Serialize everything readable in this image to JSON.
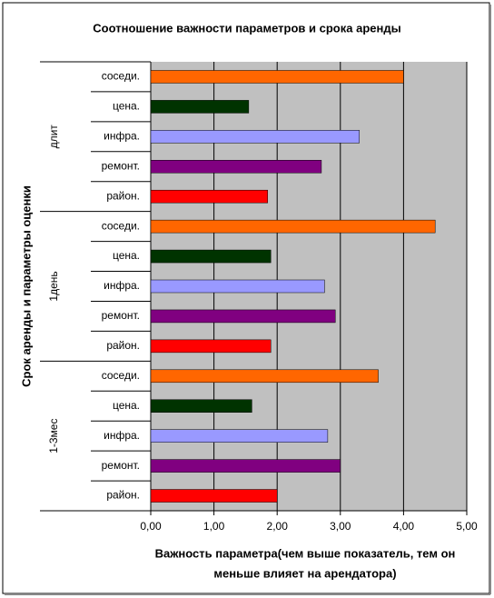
{
  "chart_data": {
    "type": "bar",
    "orientation": "horizontal",
    "title": "Соотношение важности параметров и срока аренды",
    "ylabel": "Срок аренды и параметры оценки",
    "xlabel": [
      "Важность параметра(чем выше показатель, тем он",
      "меньше влияет на арендатора)"
    ],
    "categories": [
      "соседи.",
      "цена.",
      "инфра.",
      "ремонт.",
      "район."
    ],
    "colors": [
      "#ff6600",
      "#003300",
      "#9999ff",
      "#800080",
      "#ff0000"
    ],
    "series": [
      {
        "name": "длит",
        "values": [
          4.0,
          1.55,
          3.3,
          2.7,
          1.85
        ]
      },
      {
        "name": "1день",
        "values": [
          4.5,
          1.9,
          2.75,
          2.92,
          1.9
        ]
      },
      {
        "name": "1-3мес",
        "values": [
          3.6,
          1.6,
          2.8,
          3.0,
          2.0
        ]
      }
    ],
    "xlim": [
      0,
      5
    ],
    "xticks": [
      {
        "value": 0,
        "label": "0,00"
      },
      {
        "value": 1,
        "label": "1,00"
      },
      {
        "value": 2,
        "label": "2,00"
      },
      {
        "value": 3,
        "label": "3,00"
      },
      {
        "value": 4,
        "label": "4,00"
      },
      {
        "value": 5,
        "label": "5,00"
      }
    ],
    "grid": true,
    "background": "#c0c0c0"
  }
}
